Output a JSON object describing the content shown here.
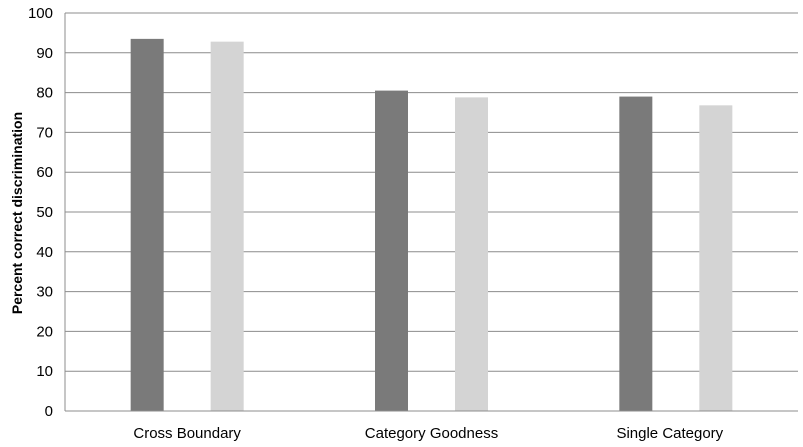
{
  "chart_data": {
    "type": "bar",
    "title": "",
    "xlabel": "",
    "ylabel": "Percent correct discrimination",
    "ylim": [
      0,
      100
    ],
    "yticks": [
      0,
      10,
      20,
      30,
      40,
      50,
      60,
      70,
      80,
      90,
      100
    ],
    "grid": true,
    "legend": "none",
    "categories": [
      "Cross Boundary",
      "Category Goodness",
      "Single Category"
    ],
    "series": [
      {
        "values": [
          93.5,
          80.5,
          79
        ],
        "color": "#7a7a7a"
      },
      {
        "values": [
          92.8,
          78.8,
          76.8
        ],
        "color": "#d4d4d4"
      }
    ]
  }
}
